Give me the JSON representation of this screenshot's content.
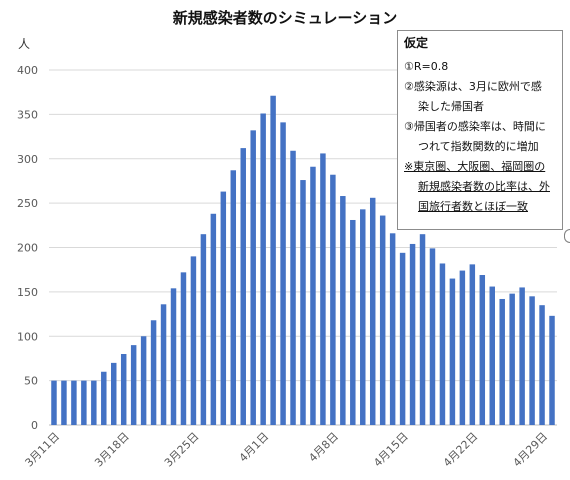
{
  "chart_data": {
    "type": "bar",
    "title": "新規感染者数のシミュレーション",
    "ylabel": "人",
    "xlabel": "",
    "ylim": [
      0,
      400
    ],
    "yticks": [
      0,
      50,
      100,
      150,
      200,
      250,
      300,
      350,
      400
    ],
    "grid": true,
    "legend": "none",
    "bar_color": "#4472C4",
    "x_tick_labels": [
      "3月11日",
      "3月18日",
      "3月25日",
      "4月1日",
      "4月8日",
      "4月15日",
      "4月22日",
      "4月29日"
    ],
    "x_tick_every": 7,
    "categories": [
      "3/11",
      "3/12",
      "3/13",
      "3/14",
      "3/15",
      "3/16",
      "3/17",
      "3/18",
      "3/19",
      "3/20",
      "3/21",
      "3/22",
      "3/23",
      "3/24",
      "3/25",
      "3/26",
      "3/27",
      "3/28",
      "3/29",
      "3/30",
      "3/31",
      "4/1",
      "4/2",
      "4/3",
      "4/4",
      "4/5",
      "4/6",
      "4/7",
      "4/8",
      "4/9",
      "4/10",
      "4/11",
      "4/12",
      "4/13",
      "4/14",
      "4/15",
      "4/16",
      "4/17",
      "4/18",
      "4/19",
      "4/20",
      "4/21",
      "4/22",
      "4/23",
      "4/24",
      "4/25",
      "4/26",
      "4/27",
      "4/28",
      "4/29",
      "4/30"
    ],
    "values": [
      50,
      50,
      50,
      50,
      50,
      60,
      70,
      80,
      90,
      100,
      118,
      136,
      154,
      172,
      190,
      215,
      238,
      263,
      287,
      312,
      332,
      351,
      371,
      341,
      309,
      276,
      291,
      306,
      282,
      258,
      231,
      243,
      256,
      236,
      216,
      194,
      204,
      215,
      199,
      182,
      165,
      174,
      181,
      169,
      156,
      142,
      148,
      155,
      145,
      135,
      123
    ],
    "annotations": {
      "box_title": "仮定",
      "lines": [
        "①R=0.8",
        "②感染源は、3月に欧州で感",
        "染した帰国者",
        "③帰国者の感染率は、時間に",
        "つれて指数関数的に増加",
        "※東京圏、大阪圏、福岡圏の",
        "新規感染者数の比率は、外",
        "国旅行者数とほぼ一致"
      ]
    }
  }
}
